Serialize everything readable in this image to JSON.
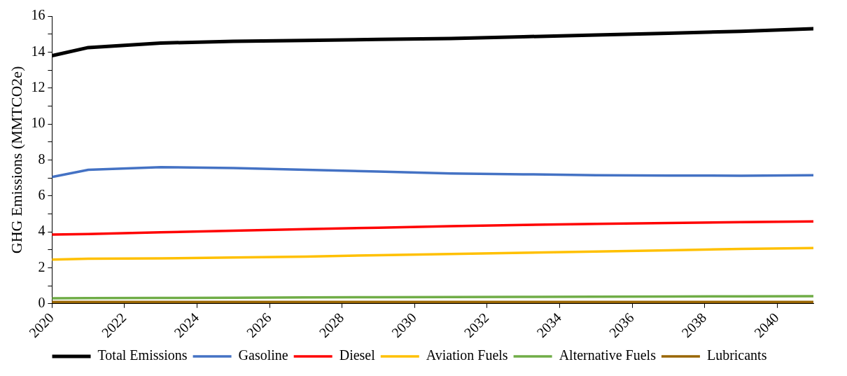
{
  "chart_data": {
    "type": "line",
    "ylabel": "GHG Emissions (MMTCO2e)",
    "x": [
      2020,
      2021,
      2023,
      2025,
      2027,
      2029,
      2031,
      2033,
      2035,
      2037,
      2039,
      2041
    ],
    "series": [
      {
        "name": "Total Emissions",
        "color": "#000000",
        "values": [
          13.8,
          14.25,
          14.5,
          14.6,
          14.65,
          14.7,
          14.75,
          14.85,
          14.95,
          15.05,
          15.15,
          15.3
        ]
      },
      {
        "name": "Gasoline",
        "color": "#4472c4",
        "values": [
          7.05,
          7.45,
          7.6,
          7.55,
          7.45,
          7.35,
          7.25,
          7.2,
          7.15,
          7.13,
          7.12,
          7.15
        ]
      },
      {
        "name": "Diesel",
        "color": "#ff0000",
        "values": [
          3.85,
          3.88,
          3.97,
          4.06,
          4.15,
          4.23,
          4.31,
          4.38,
          4.44,
          4.49,
          4.54,
          4.58
        ]
      },
      {
        "name": "Aviation Fuels",
        "color": "#ffc000",
        "values": [
          2.45,
          2.5,
          2.52,
          2.57,
          2.62,
          2.7,
          2.77,
          2.83,
          2.9,
          2.97,
          3.05,
          3.1
        ]
      },
      {
        "name": "Alternative Fuels",
        "color": "#70ad47",
        "values": [
          0.3,
          0.31,
          0.32,
          0.33,
          0.35,
          0.36,
          0.37,
          0.38,
          0.39,
          0.4,
          0.41,
          0.42
        ]
      },
      {
        "name": "Lubricants",
        "color": "#996600",
        "values": [
          0.1,
          0.1,
          0.1,
          0.1,
          0.1,
          0.1,
          0.1,
          0.1,
          0.1,
          0.1,
          0.1,
          0.1
        ]
      }
    ],
    "xlim": [
      2020,
      2041
    ],
    "xticks": [
      2020,
      2022,
      2024,
      2026,
      2028,
      2030,
      2032,
      2034,
      2036,
      2038,
      2040
    ],
    "ylim": [
      0,
      16
    ],
    "yticks": [
      0,
      {
        "value": 1,
        "label": null
      },
      2,
      {
        "value": 3,
        "label": null
      },
      4,
      {
        "value": 5,
        "label": null
      },
      6,
      {
        "value": 7,
        "label": null
      },
      8,
      {
        "value": 9,
        "label": null
      },
      10,
      {
        "value": 11,
        "label": null
      },
      12,
      {
        "value": 13,
        "label": null
      },
      14,
      {
        "value": 15,
        "label": null
      },
      16
    ],
    "grid": false,
    "legend": "bottom",
    "marker": "none",
    "line_style": "solid"
  }
}
